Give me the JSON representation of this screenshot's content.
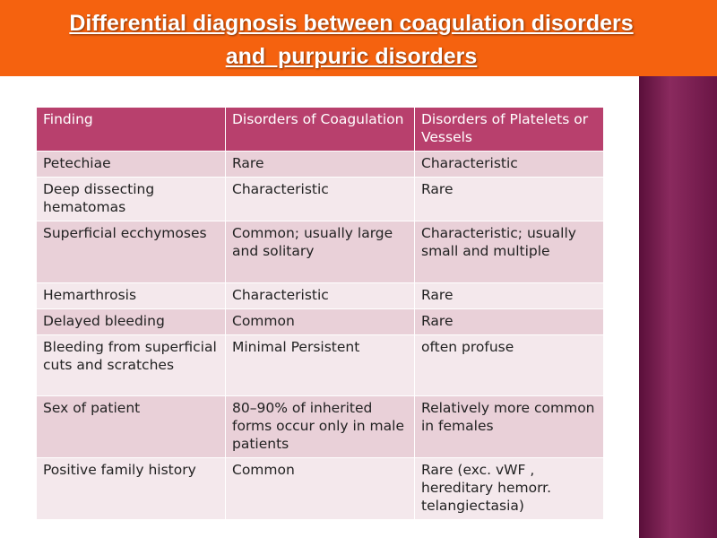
{
  "header": {
    "title_lines": [
      "Differential diagnosis between coagulation disorders",
      "and  purpuric disorders"
    ]
  },
  "table": {
    "columns": [
      "Finding",
      "Disorders of Coagulation",
      "Disorders of Platelets or Vessels"
    ],
    "rows": [
      [
        "Petechiae",
        "Rare",
        "Characteristic"
      ],
      [
        "Deep dissecting hematomas",
        "Characteristic",
        "Rare"
      ],
      [
        "Superficial ecchymoses",
        "Common; usually large and solitary",
        "Characteristic; usually small and multiple"
      ],
      [
        "Hemarthrosis",
        "Characteristic",
        "Rare"
      ],
      [
        "Delayed bleeding",
        "Common",
        "Rare"
      ],
      [
        "Bleeding from superficial cuts and scratches",
        "Minimal Persistent",
        "often profuse"
      ],
      [
        "Sex of patient",
        "80–90% of inherited forms occur only in male patients",
        "Relatively more common in females"
      ],
      [
        "Positive family history",
        "Common",
        "Rare (exc. vWF , hereditary hemorr. telangiectasia)"
      ]
    ]
  }
}
